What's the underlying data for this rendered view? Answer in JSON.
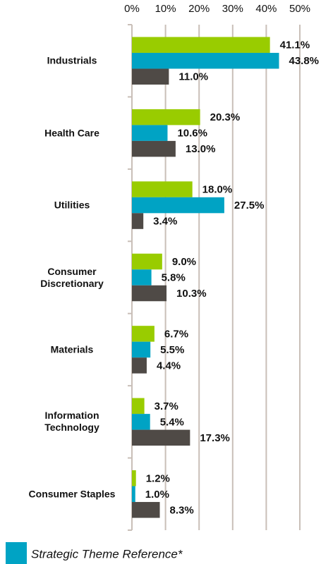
{
  "chart_data": {
    "type": "bar",
    "orientation": "horizontal",
    "categories": [
      "Industrials",
      "Health Care",
      "Utilities",
      "Consumer Discretionary",
      "Materials",
      "Information Technology",
      "Consumer Staples"
    ],
    "series": [
      {
        "color": "#99cc00",
        "values": [
          41.1,
          20.3,
          18.0,
          9.0,
          6.7,
          3.7,
          1.2
        ],
        "value_labels": [
          "41.1%",
          "20.3%",
          "18.0%",
          "9.0%",
          "6.7%",
          "3.7%",
          "1.2%"
        ]
      },
      {
        "name": "Strategic Theme Reference*",
        "color": "#00a3c4",
        "values": [
          43.8,
          10.6,
          27.5,
          5.8,
          5.5,
          5.4,
          1.0
        ],
        "value_labels": [
          "43.8%",
          "10.6%",
          "27.5%",
          "5.8%",
          "5.5%",
          "5.4%",
          "1.0%"
        ]
      },
      {
        "color": "#4f4a46",
        "values": [
          11.0,
          13.0,
          3.4,
          10.3,
          4.4,
          17.3,
          8.3
        ],
        "value_labels": [
          "11.0%",
          "13.0%",
          "3.4%",
          "10.3%",
          "4.4%",
          "17.3%",
          "8.3%"
        ]
      }
    ],
    "xlim": [
      0,
      50
    ],
    "xticks": [
      {
        "value": 0,
        "label": "0%"
      },
      {
        "value": 10,
        "label": "10%"
      },
      {
        "value": 20,
        "label": "20%"
      },
      {
        "value": 30,
        "label": "30%"
      },
      {
        "value": 40,
        "label": "40%"
      },
      {
        "value": 50,
        "label": "50%"
      }
    ],
    "grid": true
  }
}
